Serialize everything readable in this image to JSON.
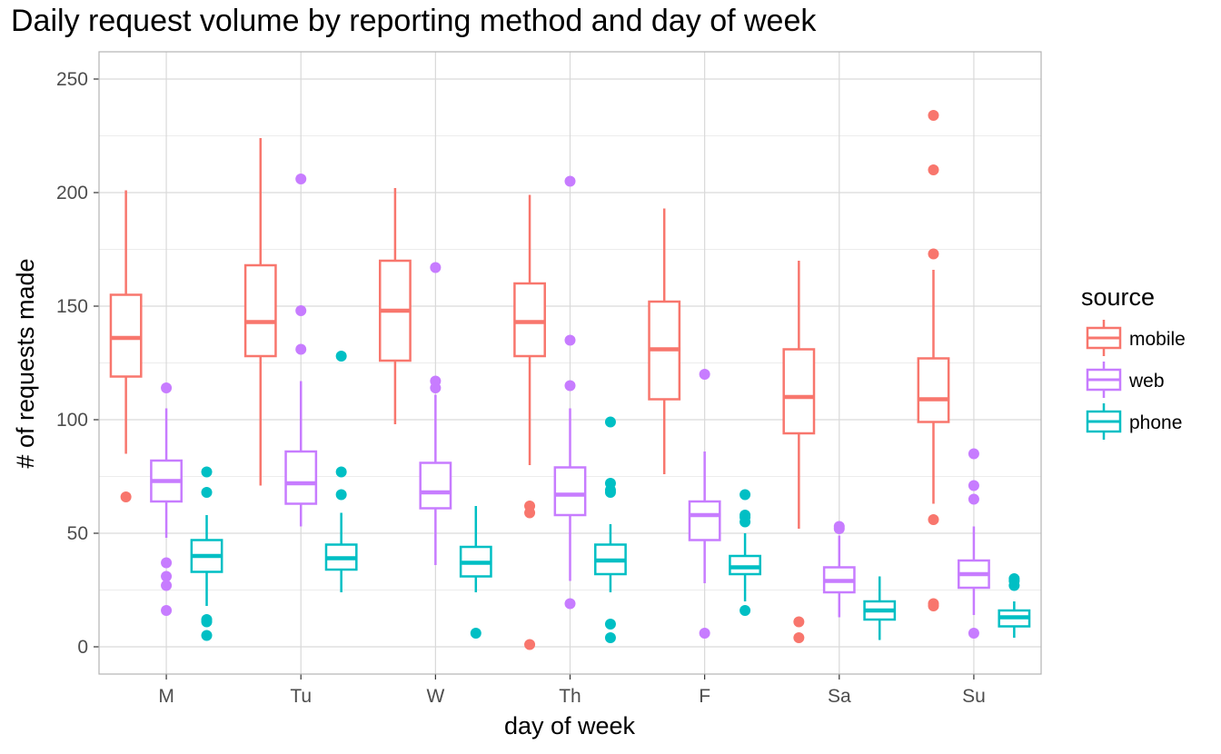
{
  "chart_data": {
    "type": "box",
    "title": "Daily request volume by reporting method and day of week",
    "xlabel": "day of week",
    "ylabel": "# of requests made",
    "categories": [
      "M",
      "Tu",
      "W",
      "Th",
      "F",
      "Sa",
      "Su"
    ],
    "yticks": [
      0,
      50,
      100,
      150,
      200,
      250
    ],
    "ylim": [
      -12,
      262
    ],
    "grid": true,
    "legend": {
      "title": "source",
      "position": "right"
    },
    "series": [
      {
        "name": "mobile",
        "color": "#F8766D",
        "boxes": [
          {
            "whisker_low": 85,
            "q1": 119,
            "median": 136,
            "q3": 155,
            "whisker_high": 201,
            "outliers": [
              66
            ]
          },
          {
            "whisker_low": 71,
            "q1": 128,
            "median": 143,
            "q3": 168,
            "whisker_high": 224,
            "outliers": []
          },
          {
            "whisker_low": 98,
            "q1": 126,
            "median": 148,
            "q3": 170,
            "whisker_high": 202,
            "outliers": []
          },
          {
            "whisker_low": 80,
            "q1": 128,
            "median": 143,
            "q3": 160,
            "whisker_high": 199,
            "outliers": [
              62,
              59,
              1
            ]
          },
          {
            "whisker_low": 76,
            "q1": 109,
            "median": 131,
            "q3": 152,
            "whisker_high": 193,
            "outliers": []
          },
          {
            "whisker_low": 52,
            "q1": 94,
            "median": 110,
            "q3": 131,
            "whisker_high": 170,
            "outliers": [
              11,
              4
            ]
          },
          {
            "whisker_low": 63,
            "q1": 99,
            "median": 109,
            "q3": 127,
            "whisker_high": 166,
            "outliers": [
              234,
              210,
              173,
              56,
              19,
              18
            ]
          }
        ]
      },
      {
        "name": "web",
        "color": "#C77CFF",
        "boxes": [
          {
            "whisker_low": 48,
            "q1": 64,
            "median": 73,
            "q3": 82,
            "whisker_high": 105,
            "outliers": [
              114,
              37,
              31,
              27,
              16
            ]
          },
          {
            "whisker_low": 53,
            "q1": 63,
            "median": 72,
            "q3": 86,
            "whisker_high": 117,
            "outliers": [
              206,
              148,
              131
            ]
          },
          {
            "whisker_low": 36,
            "q1": 61,
            "median": 68,
            "q3": 81,
            "whisker_high": 111,
            "outliers": [
              167,
              117,
              114
            ]
          },
          {
            "whisker_low": 29,
            "q1": 58,
            "median": 67,
            "q3": 79,
            "whisker_high": 105,
            "outliers": [
              205,
              135,
              115,
              19
            ]
          },
          {
            "whisker_low": 28,
            "q1": 47,
            "median": 58,
            "q3": 64,
            "whisker_high": 86,
            "outliers": [
              120,
              6
            ]
          },
          {
            "whisker_low": 13,
            "q1": 24,
            "median": 29,
            "q3": 35,
            "whisker_high": 49,
            "outliers": [
              53,
              52
            ]
          },
          {
            "whisker_low": 14,
            "q1": 26,
            "median": 32,
            "q3": 38,
            "whisker_high": 53,
            "outliers": [
              85,
              71,
              65,
              6
            ]
          }
        ]
      },
      {
        "name": "phone",
        "color": "#00BFC4",
        "boxes": [
          {
            "whisker_low": 18,
            "q1": 33,
            "median": 40,
            "q3": 47,
            "whisker_high": 58,
            "outliers": [
              77,
              68,
              12,
              11,
              5
            ]
          },
          {
            "whisker_low": 24,
            "q1": 34,
            "median": 39,
            "q3": 45,
            "whisker_high": 59,
            "outliers": [
              128,
              77,
              67
            ]
          },
          {
            "whisker_low": 24,
            "q1": 31,
            "median": 37,
            "q3": 44,
            "whisker_high": 62,
            "outliers": [
              6
            ]
          },
          {
            "whisker_low": 24,
            "q1": 32,
            "median": 38,
            "q3": 45,
            "whisker_high": 54,
            "outliers": [
              99,
              72,
              69,
              68,
              10,
              4
            ]
          },
          {
            "whisker_low": 20,
            "q1": 32,
            "median": 35,
            "q3": 40,
            "whisker_high": 50,
            "outliers": [
              67,
              58,
              57,
              55,
              16
            ]
          },
          {
            "whisker_low": 3,
            "q1": 12,
            "median": 16,
            "q3": 20,
            "whisker_high": 31,
            "outliers": []
          },
          {
            "whisker_low": 4,
            "q1": 9,
            "median": 13,
            "q3": 16,
            "whisker_high": 20,
            "outliers": [
              30,
              29,
              27
            ]
          }
        ]
      }
    ]
  }
}
